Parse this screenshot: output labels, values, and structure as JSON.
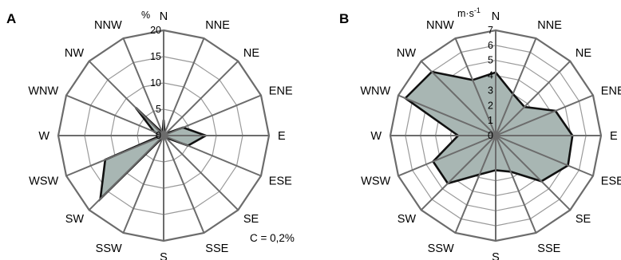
{
  "chart_data": [
    {
      "type": "radar",
      "panel_label": "A",
      "unit": "%",
      "rmax": 20,
      "ticks": [
        "0",
        "5",
        "10",
        "15",
        "20"
      ],
      "tick_values": [
        0,
        5,
        10,
        15,
        20
      ],
      "directions": [
        "N",
        "NNE",
        "NE",
        "ENE",
        "E",
        "ESE",
        "SE",
        "SSE",
        "S",
        "SSW",
        "SW",
        "WSW",
        "W",
        "WNW",
        "NW",
        "NNW"
      ],
      "values": [
        3,
        0.5,
        0.5,
        4,
        8,
        5,
        0.5,
        0.3,
        0.3,
        0.3,
        17,
        12,
        0.5,
        2,
        7.5,
        0.5
      ],
      "annotation": "C = 0,2%"
    },
    {
      "type": "radar",
      "panel_label": "B",
      "unit": "m·s",
      "unit_superscript": "-1",
      "rmax": 7,
      "ticks": [
        "0",
        "1",
        "2",
        "3",
        "4",
        "5",
        "6",
        "7"
      ],
      "tick_values": [
        0,
        1,
        2,
        3,
        4,
        5,
        6,
        7
      ],
      "directions": [
        "N",
        "NNE",
        "NE",
        "ENE",
        "E",
        "ESE",
        "SE",
        "SSE",
        "S",
        "SSW",
        "SW",
        "WSW",
        "W",
        "WNW",
        "NW",
        "NNW"
      ],
      "values": [
        4.2,
        3.0,
        2.7,
        4.3,
        5.1,
        5.2,
        4.3,
        2.6,
        2.3,
        2.8,
        4.5,
        4.5,
        2.5,
        6.5,
        6.0,
        4.0
      ]
    }
  ]
}
